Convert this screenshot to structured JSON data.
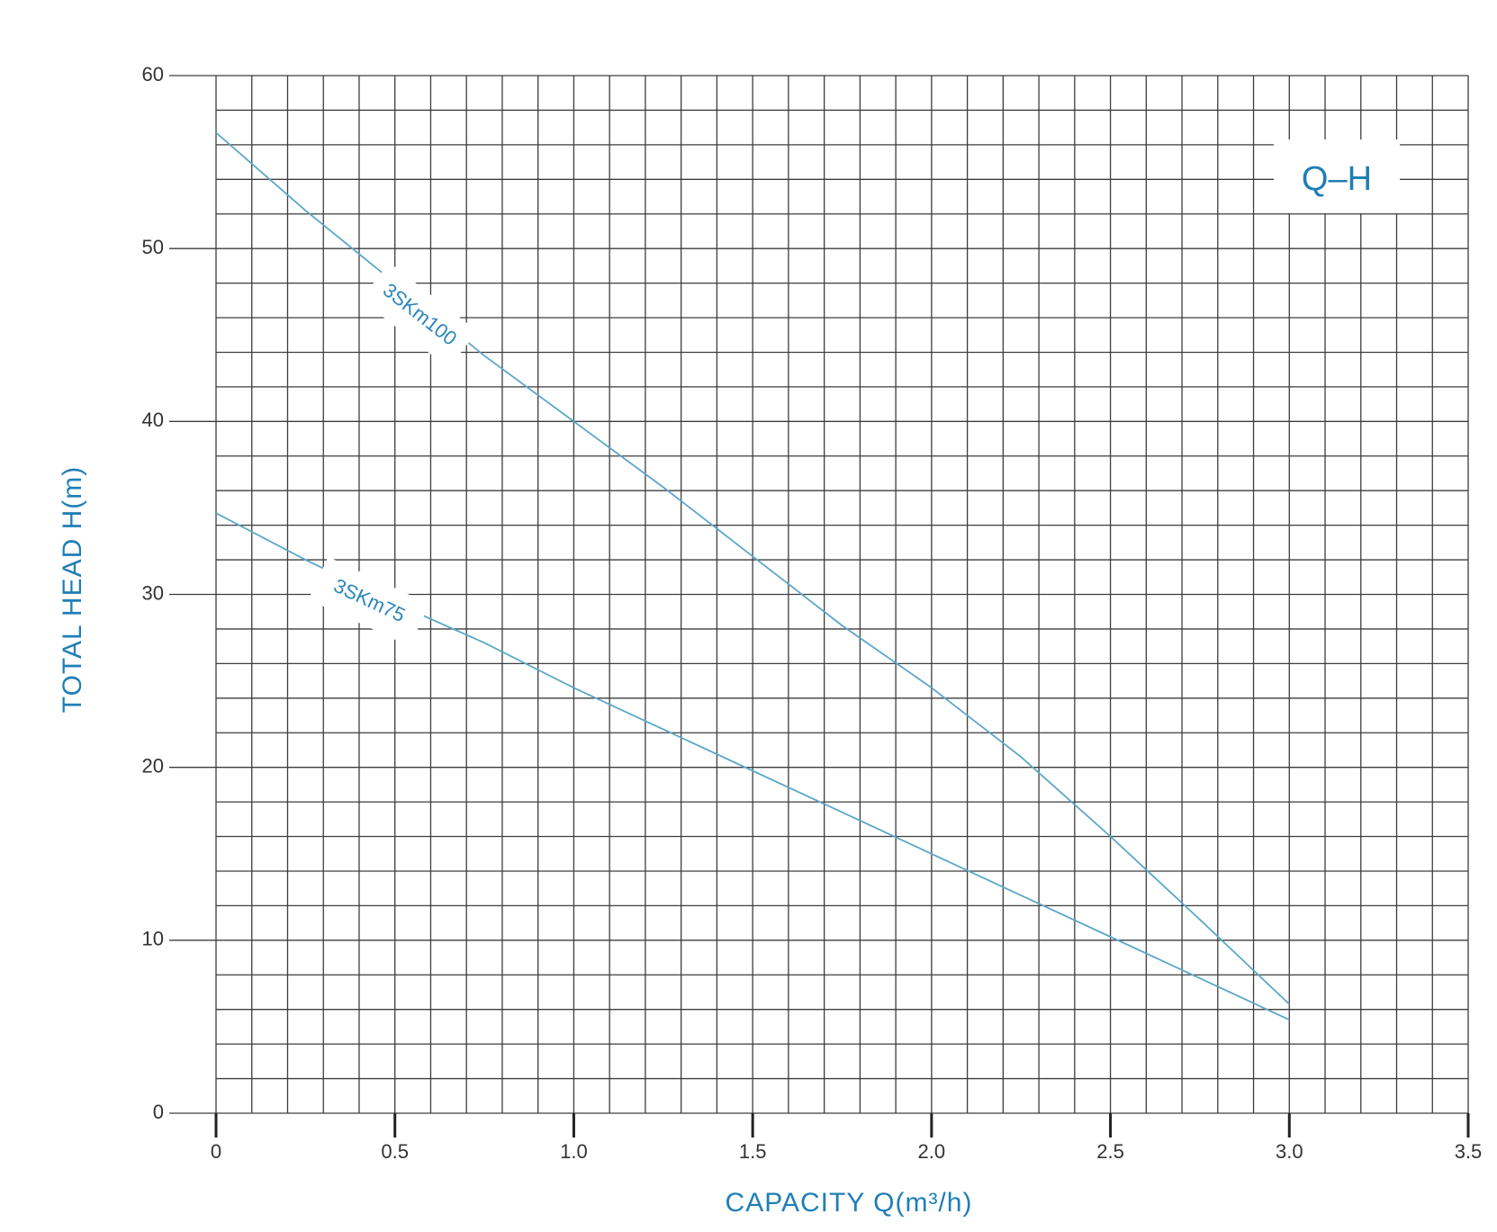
{
  "chart_data": {
    "type": "line",
    "title": "",
    "badge": "Q–H",
    "xlabel": "CAPACITY Q(m³/h)",
    "ylabel": "TOTAL HEAD H(m)",
    "xlim": [
      0,
      3.5
    ],
    "ylim": [
      0,
      60
    ],
    "xticks": [
      "0",
      "0.5",
      "1.0",
      "1.5",
      "2.0",
      "2.5",
      "3.0",
      "3.5"
    ],
    "xtick_values": [
      0,
      0.5,
      1.0,
      1.5,
      2.0,
      2.5,
      3.0,
      3.5
    ],
    "yticks": [
      "0",
      "10",
      "20",
      "30",
      "40",
      "50",
      "60"
    ],
    "ytick_values": [
      0,
      10,
      20,
      30,
      40,
      50,
      60
    ],
    "grid": true,
    "x_minor_step": 0.1,
    "y_minor_step": 2,
    "series": [
      {
        "name": "3SKm100",
        "color": "#5ba7c9",
        "x": [
          0,
          0.25,
          0.5,
          0.75,
          1.0,
          1.25,
          1.5,
          1.75,
          2.0,
          2.25,
          2.5,
          2.75,
          3.0
        ],
        "y": [
          56.7,
          52.2,
          48.0,
          43.8,
          40.0,
          36.2,
          32.2,
          28.2,
          24.6,
          20.6,
          16.0,
          11.2,
          6.3
        ]
      },
      {
        "name": "3SKm75",
        "color": "#5ba7c9",
        "x": [
          0,
          0.25,
          0.5,
          0.75,
          1.0,
          1.25,
          1.5,
          1.75,
          2.0,
          2.25,
          2.5,
          2.75,
          3.0
        ],
        "y": [
          34.7,
          32.0,
          29.5,
          27.2,
          24.6,
          22.2,
          19.8,
          17.4,
          15.0,
          12.6,
          10.2,
          7.8,
          5.4
        ]
      }
    ]
  }
}
